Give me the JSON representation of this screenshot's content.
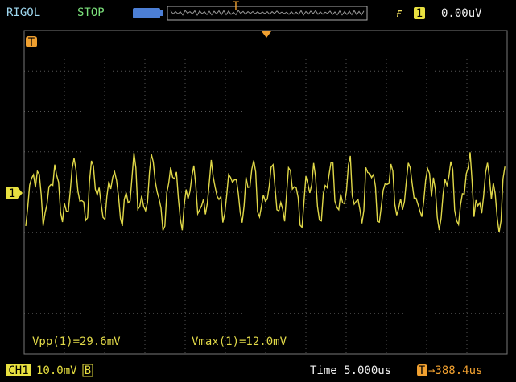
{
  "header": {
    "brand": "RIGOL",
    "status": "STOP",
    "memory_trigger_marker": "T",
    "trigger_channel": "1",
    "trigger_level": "0.00uV"
  },
  "screen": {
    "trigger_marker": "T",
    "channel_marker": "1",
    "measurements": [
      "Vpp(1)=29.6mV",
      "Vmax(1)=12.0mV"
    ]
  },
  "footer": {
    "channel": "CH1",
    "volts_per_div": "10.0mV",
    "bandwidth_limit": "B",
    "timebase": "Time 5.000us",
    "trigger_icon": "T",
    "trigger_offset": "→388.4us"
  }
}
